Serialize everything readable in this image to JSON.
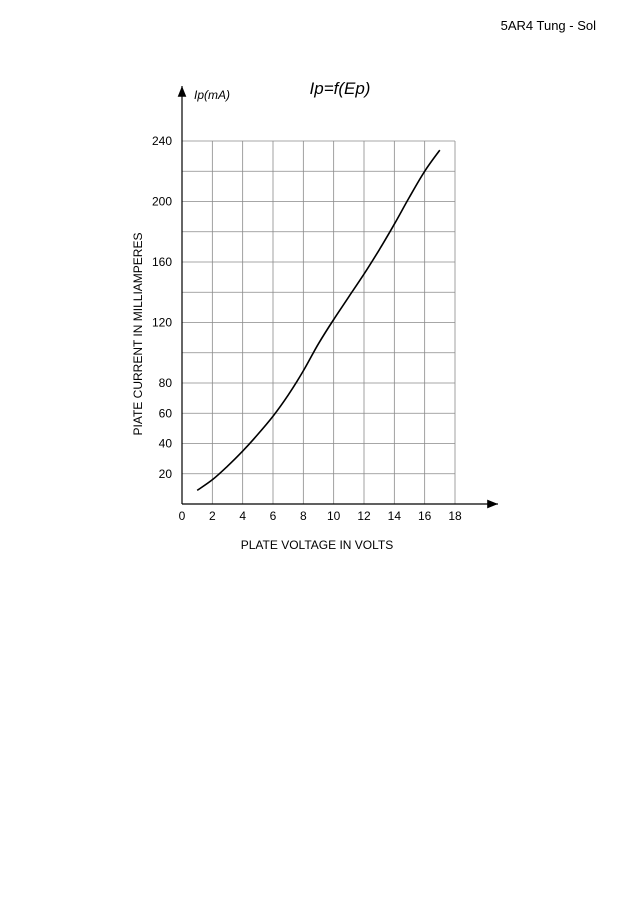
{
  "header": {
    "text": "5AR4 Tung - Sol"
  },
  "chart_data": {
    "type": "line",
    "title": "Ip=f(Ep)",
    "y_unit_label": "Ip(mA)",
    "xlabel": "PLATE VOLTAGE IN VOLTS",
    "ylabel": "PIATE CURRENT IN MILLIAMPERES",
    "xlim": [
      0,
      18
    ],
    "ylim": [
      0,
      240
    ],
    "x_ticks": [
      0,
      2,
      4,
      6,
      8,
      10,
      12,
      14,
      16,
      18
    ],
    "y_ticks": [
      20,
      40,
      60,
      80,
      120,
      160,
      200,
      240
    ],
    "grid": true,
    "series": [
      {
        "x": [
          1,
          2,
          3,
          4,
          5,
          6,
          7,
          8,
          9,
          10,
          11,
          12,
          13,
          14,
          15,
          16,
          17
        ],
        "values": [
          9,
          16,
          25,
          35,
          46,
          58,
          72,
          88,
          106,
          122,
          137,
          152,
          168,
          185,
          203,
          220,
          234
        ]
      }
    ]
  }
}
